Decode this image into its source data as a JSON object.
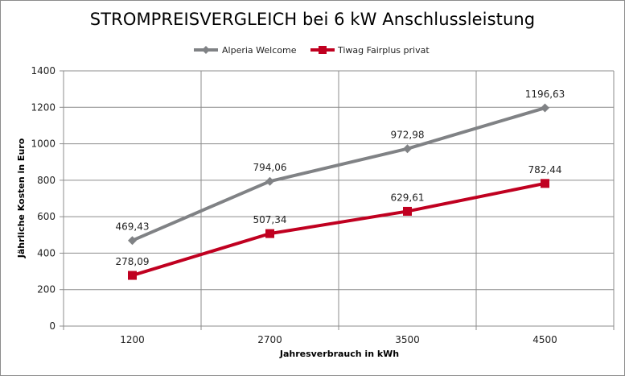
{
  "chart_data": {
    "type": "line",
    "title": "STROMPREISVERGLEICH bei 6 kW Anschlussleistung",
    "xlabel": "Jahresverbrauch in kWh",
    "ylabel": "Jährliche Kosten in Euro",
    "categories": [
      "1200",
      "2700",
      "3500",
      "4500"
    ],
    "ylim": [
      0,
      1400
    ],
    "yticks": [
      0,
      200,
      400,
      600,
      800,
      1000,
      1200,
      1400
    ],
    "grid": true,
    "legend_position": "top",
    "series": [
      {
        "name": "Alperia Welcome",
        "values": [
          469.43,
          794.06,
          972.98,
          1196.63
        ],
        "labels": [
          "469,43",
          "794,06",
          "972,98",
          "1196,63"
        ],
        "color": "#808285",
        "marker": "diamond"
      },
      {
        "name": "Tiwag Fairplus privat",
        "values": [
          278.09,
          507.34,
          629.61,
          782.44
        ],
        "labels": [
          "278,09",
          "507,34",
          "629,61",
          "782,44"
        ],
        "color": "#c00020",
        "marker": "square"
      }
    ]
  }
}
